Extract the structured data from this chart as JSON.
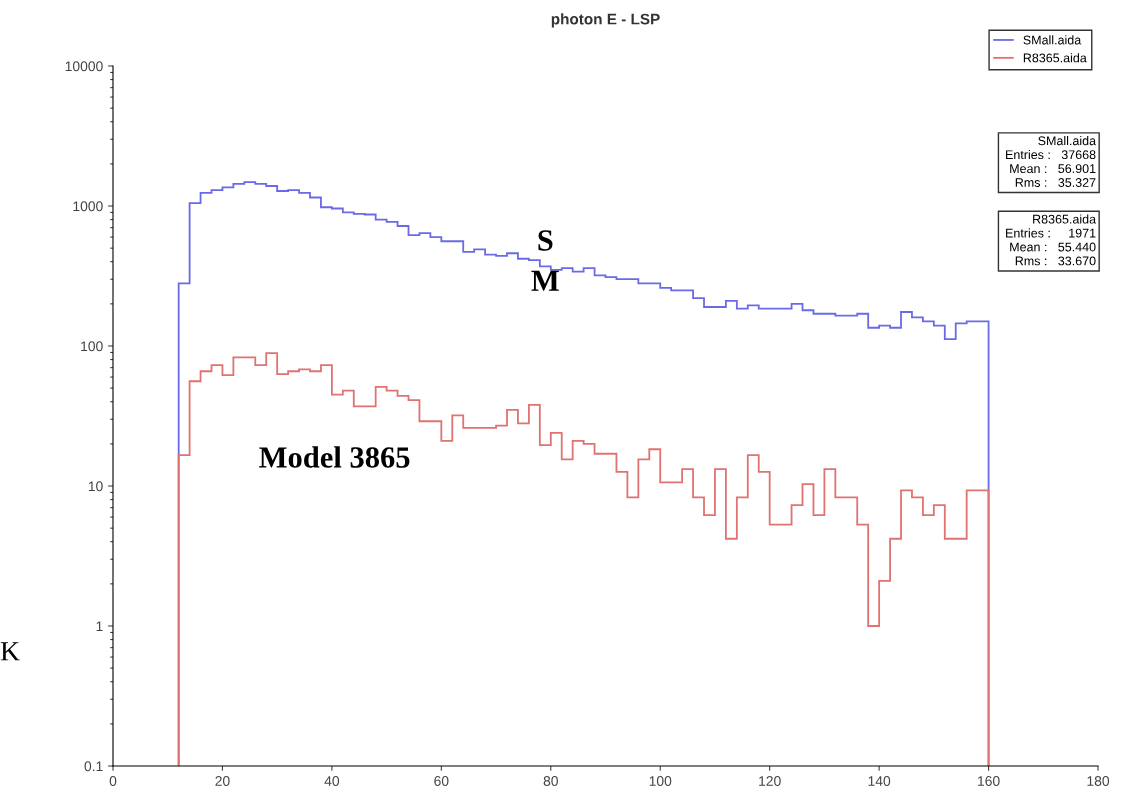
{
  "chart_data": {
    "type": "histogram",
    "title": "photon E - LSP",
    "bins": [
      12,
      14,
      16,
      18,
      20,
      22,
      24,
      26,
      28,
      30,
      32,
      34,
      36,
      38,
      40,
      42,
      44,
      46,
      48,
      50,
      52,
      54,
      56,
      58,
      60,
      62,
      64,
      66,
      68,
      70,
      72,
      74,
      76,
      78,
      80,
      82,
      84,
      86,
      88,
      90,
      92,
      94,
      96,
      98,
      100,
      102,
      104,
      106,
      108,
      110,
      112,
      114,
      116,
      118,
      120,
      122,
      124,
      126,
      128,
      130,
      132,
      134,
      136,
      138,
      140,
      142,
      144,
      146,
      148,
      150,
      152,
      154,
      156,
      158,
      160
    ],
    "series": [
      {
        "name": "SMall.aida",
        "color": "#6a6ae8",
        "values": [
          280,
          1050,
          1240,
          1300,
          1360,
          1440,
          1480,
          1440,
          1390,
          1280,
          1300,
          1240,
          1150,
          980,
          960,
          900,
          880,
          870,
          800,
          770,
          720,
          620,
          640,
          600,
          560,
          560,
          470,
          490,
          450,
          440,
          460,
          420,
          410,
          370,
          350,
          360,
          340,
          360,
          320,
          310,
          300,
          300,
          280,
          280,
          260,
          250,
          250,
          220,
          190,
          190,
          210,
          185,
          195,
          185,
          185,
          185,
          200,
          180,
          170,
          170,
          165,
          165,
          170,
          135,
          140,
          135,
          175,
          160,
          150,
          140,
          112,
          145,
          150,
          150
        ]
      },
      {
        "name": "R8365.aida",
        "color": "#e07272",
        "values": [
          16.6,
          56,
          66,
          73,
          62,
          83,
          83,
          73,
          89,
          63,
          66,
          68,
          66,
          73,
          45,
          48,
          37,
          37,
          51,
          48,
          44,
          41,
          29,
          29,
          21,
          32,
          26,
          26,
          26,
          27,
          35,
          28,
          38,
          19.6,
          24,
          15.5,
          21,
          20,
          17,
          17,
          12.6,
          8.3,
          15.5,
          18.3,
          10.6,
          10.6,
          13.2,
          8.3,
          6.2,
          13.2,
          4.2,
          8.3,
          16.6,
          12.6,
          5.3,
          5.3,
          7.3,
          10.3,
          6.2,
          13.2,
          8.3,
          8.3,
          5.3,
          1,
          2.1,
          4.2,
          9.3,
          8.3,
          6.2,
          7.3,
          4.2,
          4.2,
          9.3,
          9.3
        ]
      }
    ],
    "log": true,
    "xlim": [
      0,
      180
    ],
    "xticks": [
      0,
      20,
      40,
      60,
      80,
      100,
      120,
      140,
      160,
      180
    ],
    "ylim": [
      0.1,
      10000
    ],
    "yticks": [
      0.1,
      1,
      10,
      100,
      1000,
      10000
    ],
    "legend": "top right",
    "grid": false,
    "annotations": [
      {
        "text": "S\nM",
        "x": 79,
        "y": 390
      },
      "Model 3865",
      "SMall.aida\n Entries :   37668\n Mean :   56.901\n Rms :   35.327",
      "R8365.aida\n Entries :     1971\n Mean :   55.440\n Rms :   33.670",
      "K"
    ]
  }
}
